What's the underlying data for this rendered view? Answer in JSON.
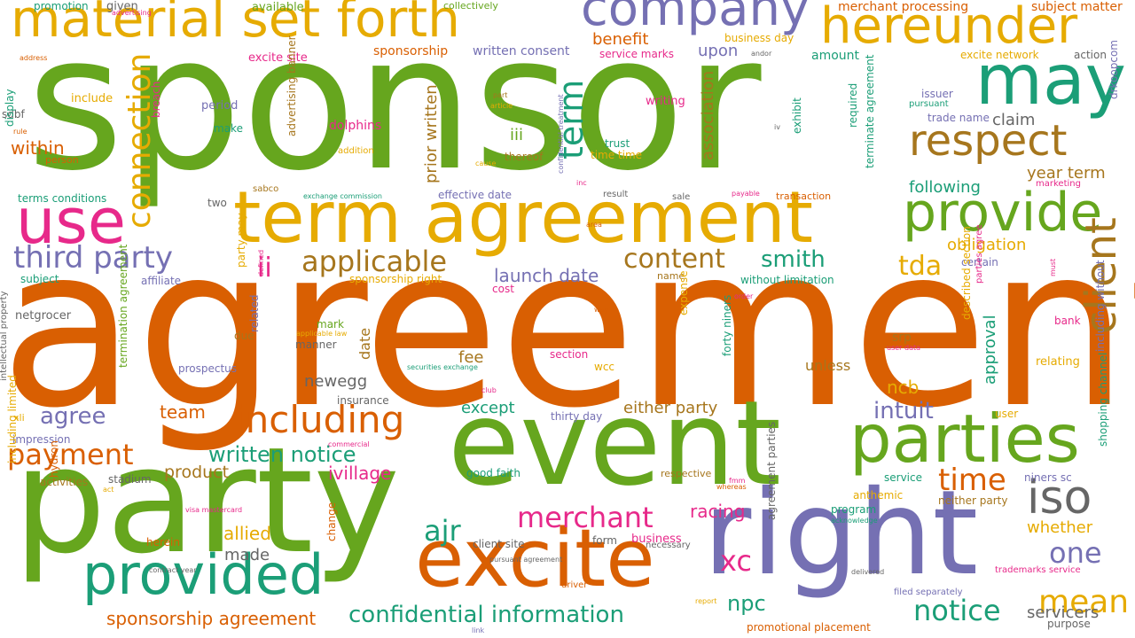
{
  "colors": {
    "green": "#66a61e",
    "orange": "#d95f02",
    "gold": "#e6ab02",
    "purple": "#7570b3",
    "teal": "#1b9e77",
    "pink": "#e7298a",
    "brown": "#a6761d",
    "gray": "#666666"
  },
  "words": [
    {
      "text": "sponsor",
      "color": "green",
      "vertical": false
    },
    {
      "text": "agreement",
      "color": "orange",
      "vertical": false
    },
    {
      "text": "party",
      "color": "green",
      "vertical": false
    },
    {
      "text": "event",
      "color": "green",
      "vertical": false
    },
    {
      "text": "right",
      "color": "purple",
      "vertical": false
    },
    {
      "text": "term agreement",
      "color": "gold",
      "vertical": false
    },
    {
      "text": "may",
      "color": "teal",
      "vertical": false
    },
    {
      "text": "excite",
      "color": "orange",
      "vertical": false
    },
    {
      "text": "parties",
      "color": "green",
      "vertical": false
    },
    {
      "text": "provide",
      "color": "green",
      "vertical": false
    },
    {
      "text": "use",
      "color": "pink",
      "vertical": false
    },
    {
      "text": "provided",
      "color": "teal",
      "vertical": false
    },
    {
      "text": "company",
      "color": "purple",
      "vertical": false
    },
    {
      "text": "material set forth",
      "color": "gold",
      "vertical": false
    },
    {
      "text": "hereunder",
      "color": "gold",
      "vertical": false
    },
    {
      "text": "respect",
      "color": "brown",
      "vertical": false
    },
    {
      "text": "client",
      "color": "brown",
      "vertical": true
    },
    {
      "text": "iso",
      "color": "gray",
      "vertical": false
    },
    {
      "text": "including",
      "color": "orange",
      "vertical": false
    },
    {
      "text": "term",
      "color": "teal",
      "vertical": true
    },
    {
      "text": "connection",
      "color": "gold",
      "vertical": true
    },
    {
      "text": "third party",
      "color": "purple",
      "vertical": false
    },
    {
      "text": "applicable",
      "color": "brown",
      "vertical": false
    },
    {
      "text": "content",
      "color": "brown",
      "vertical": false
    },
    {
      "text": "smith",
      "color": "teal",
      "vertical": false
    },
    {
      "text": "tda",
      "color": "gold",
      "vertical": false
    },
    {
      "text": "ii",
      "color": "pink",
      "vertical": false
    },
    {
      "text": "mean",
      "color": "gold",
      "vertical": false
    },
    {
      "text": "payment",
      "color": "orange",
      "vertical": false
    },
    {
      "text": "merchant",
      "color": "pink",
      "vertical": false
    },
    {
      "text": "ajr",
      "color": "teal",
      "vertical": false
    },
    {
      "text": "xc",
      "color": "pink",
      "vertical": false
    },
    {
      "text": "npc",
      "color": "teal",
      "vertical": false
    },
    {
      "text": "notice",
      "color": "teal",
      "vertical": false
    },
    {
      "text": "time",
      "color": "orange",
      "vertical": false
    },
    {
      "text": "one",
      "color": "purple",
      "vertical": false
    },
    {
      "text": "confidential information",
      "color": "teal",
      "vertical": false
    },
    {
      "text": "written notice",
      "color": "teal",
      "vertical": false
    },
    {
      "text": "sponsorship agreement",
      "color": "orange",
      "vertical": false
    },
    {
      "text": "intuit",
      "color": "purple",
      "vertical": false
    },
    {
      "text": "agree",
      "color": "purple",
      "vertical": false
    },
    {
      "text": "product",
      "color": "brown",
      "vertical": false
    },
    {
      "text": "ivillage",
      "color": "pink",
      "vertical": false
    },
    {
      "text": "racing",
      "color": "pink",
      "vertical": false
    },
    {
      "text": "allied",
      "color": "gold",
      "vertical": false
    },
    {
      "text": "made",
      "color": "gray",
      "vertical": false
    },
    {
      "text": "launch date",
      "color": "purple",
      "vertical": false
    },
    {
      "text": "benefit",
      "color": "orange",
      "vertical": false
    },
    {
      "text": "upon",
      "color": "purple",
      "vertical": false
    },
    {
      "text": "prior written",
      "color": "brown",
      "vertical": true
    },
    {
      "text": "association",
      "color": "brown",
      "vertical": true
    },
    {
      "text": "following",
      "color": "teal",
      "vertical": false
    },
    {
      "text": "year term",
      "color": "brown",
      "vertical": false
    },
    {
      "text": "obligation",
      "color": "gold",
      "vertical": false
    },
    {
      "text": "either party",
      "color": "brown",
      "vertical": false
    },
    {
      "text": "except",
      "color": "teal",
      "vertical": false
    },
    {
      "text": "team",
      "color": "orange",
      "vertical": false
    },
    {
      "text": "newegg",
      "color": "gray",
      "vertical": false
    },
    {
      "text": "ncb",
      "color": "gold",
      "vertical": false
    },
    {
      "text": "approval",
      "color": "teal",
      "vertical": true
    },
    {
      "text": "within",
      "color": "orange",
      "vertical": false
    },
    {
      "text": "iii",
      "color": "green",
      "vertical": false
    },
    {
      "text": "servicers",
      "color": "gray",
      "vertical": false
    },
    {
      "text": "whether",
      "color": "gold",
      "vertical": false
    },
    {
      "text": "claim",
      "color": "gray",
      "vertical": false
    },
    {
      "text": "fee",
      "color": "brown",
      "vertical": false
    },
    {
      "text": "unless",
      "color": "brown",
      "vertical": false
    },
    {
      "text": "date",
      "color": "brown",
      "vertical": true
    },
    {
      "text": "merchant processing",
      "color": "orange",
      "vertical": false
    },
    {
      "text": "subject matter",
      "color": "orange",
      "vertical": false
    },
    {
      "text": "excite network",
      "color": "gold",
      "vertical": false
    },
    {
      "text": "action",
      "color": "gray",
      "vertical": false
    },
    {
      "text": "issuer",
      "color": "purple",
      "vertical": false
    },
    {
      "text": "pursuant",
      "color": "teal",
      "vertical": false
    },
    {
      "text": "trade name",
      "color": "purple",
      "vertical": false
    },
    {
      "text": "drkoopcom",
      "color": "purple",
      "vertical": true
    },
    {
      "text": "terminate agreement",
      "color": "teal",
      "vertical": true
    },
    {
      "text": "required",
      "color": "teal",
      "vertical": true
    },
    {
      "text": "exhibit",
      "color": "teal",
      "vertical": true
    },
    {
      "text": "amount",
      "color": "teal",
      "vertical": false
    },
    {
      "text": "andor",
      "color": "gray",
      "vertical": false
    },
    {
      "text": "business day",
      "color": "gold",
      "vertical": false
    },
    {
      "text": "writing",
      "color": "pink",
      "vertical": false
    },
    {
      "text": "trust",
      "color": "teal",
      "vertical": false
    },
    {
      "text": "time time",
      "color": "gold",
      "vertical": false
    },
    {
      "text": "service marks",
      "color": "pink",
      "vertical": false
    },
    {
      "text": "written consent",
      "color": "purple",
      "vertical": false
    },
    {
      "text": "sponsorship",
      "color": "orange",
      "vertical": false
    },
    {
      "text": "excite site",
      "color": "pink",
      "vertical": false
    },
    {
      "text": "available",
      "color": "green",
      "vertical": false
    },
    {
      "text": "collectively",
      "color": "green",
      "vertical": false
    },
    {
      "text": "promotion",
      "color": "teal",
      "vertical": false
    },
    {
      "text": "given",
      "color": "gray",
      "vertical": false
    },
    {
      "text": "advertising",
      "color": "pink",
      "vertical": false
    },
    {
      "text": "address",
      "color": "orange",
      "vertical": false
    },
    {
      "text": "include",
      "color": "gold",
      "vertical": false
    },
    {
      "text": "period",
      "color": "purple",
      "vertical": false
    },
    {
      "text": "make",
      "color": "teal",
      "vertical": false
    },
    {
      "text": "sdbf",
      "color": "gray",
      "vertical": false
    },
    {
      "text": "rule",
      "color": "orange",
      "vertical": false
    },
    {
      "text": "person",
      "color": "orange",
      "vertical": false
    },
    {
      "text": "dolphins",
      "color": "pink",
      "vertical": false
    },
    {
      "text": "addition",
      "color": "gold",
      "vertical": false
    },
    {
      "text": "part",
      "color": "brown",
      "vertical": false
    },
    {
      "text": "article",
      "color": "gold",
      "vertical": false
    },
    {
      "text": "thereof",
      "color": "brown",
      "vertical": false
    },
    {
      "text": "cause",
      "color": "gold",
      "vertical": false
    },
    {
      "text": "advertising banner",
      "color": "brown",
      "vertical": true
    },
    {
      "text": "display",
      "color": "teal",
      "vertical": true
    },
    {
      "text": "terms conditions",
      "color": "teal",
      "vertical": false
    },
    {
      "text": "breach",
      "color": "pink",
      "vertical": true
    },
    {
      "text": "sabco",
      "color": "brown",
      "vertical": false
    },
    {
      "text": "exchange commission",
      "color": "teal",
      "vertical": false
    },
    {
      "text": "two",
      "color": "gray",
      "vertical": false
    },
    {
      "text": "effective date",
      "color": "purple",
      "vertical": false
    },
    {
      "text": "inc",
      "color": "pink",
      "vertical": false
    },
    {
      "text": "result",
      "color": "gray",
      "vertical": false
    },
    {
      "text": "confidential treatment",
      "color": "purple",
      "vertical": true
    },
    {
      "text": "sale",
      "color": "gray",
      "vertical": false
    },
    {
      "text": "payable",
      "color": "pink",
      "vertical": false
    },
    {
      "text": "transaction",
      "color": "orange",
      "vertical": false
    },
    {
      "text": "marketing",
      "color": "pink",
      "vertical": false
    },
    {
      "text": "area",
      "color": "orange",
      "vertical": false
    },
    {
      "text": "iv",
      "color": "gray",
      "vertical": false
    },
    {
      "text": "subject",
      "color": "teal",
      "vertical": false
    },
    {
      "text": "affiliate",
      "color": "purple",
      "vertical": false
    },
    {
      "text": "sponsorship right",
      "color": "gold",
      "vertical": false
    },
    {
      "text": "cost",
      "color": "pink",
      "vertical": false
    },
    {
      "text": "name",
      "color": "brown",
      "vertical": false
    },
    {
      "text": "without limitation",
      "color": "teal",
      "vertical": false
    },
    {
      "text": "certain",
      "color": "purple",
      "vertical": false
    },
    {
      "text": "intellectual property",
      "color": "gray",
      "vertical": true
    },
    {
      "text": "netgrocer",
      "color": "gray",
      "vertical": false
    },
    {
      "text": "termination agreement",
      "color": "green",
      "vertical": true
    },
    {
      "text": "party may",
      "color": "gold",
      "vertical": true
    },
    {
      "text": "order",
      "color": "pink",
      "vertical": false
    },
    {
      "text": "way",
      "color": "orange",
      "vertical": false
    },
    {
      "text": "described section",
      "color": "gold",
      "vertical": true
    },
    {
      "text": "parties agree",
      "color": "pink",
      "vertical": true
    },
    {
      "text": "including without",
      "color": "purple",
      "vertical": true
    },
    {
      "text": "bank",
      "color": "pink",
      "vertical": false
    },
    {
      "text": "must",
      "color": "pink",
      "vertical": true
    },
    {
      "text": "srp",
      "color": "brown",
      "vertical": false
    },
    {
      "text": "user data",
      "color": "pink",
      "vertical": false
    },
    {
      "text": "relating",
      "color": "gold",
      "vertical": false
    },
    {
      "text": "mark",
      "color": "green",
      "vertical": false
    },
    {
      "text": "applicable law",
      "color": "gold",
      "vertical": false
    },
    {
      "text": "due",
      "color": "brown",
      "vertical": false
    },
    {
      "text": "manner",
      "color": "gray",
      "vertical": false
    },
    {
      "text": "expense",
      "color": "gold",
      "vertical": true
    },
    {
      "text": "forty niners",
      "color": "teal",
      "vertical": true
    },
    {
      "text": "section",
      "color": "pink",
      "vertical": false
    },
    {
      "text": "prospectus",
      "color": "purple",
      "vertical": false
    },
    {
      "text": "related",
      "color": "purple",
      "vertical": true
    },
    {
      "text": "defined",
      "color": "pink",
      "vertical": true
    },
    {
      "text": "securities exchange",
      "color": "teal",
      "vertical": false
    },
    {
      "text": "wcc",
      "color": "gold",
      "vertical": false
    },
    {
      "text": "club",
      "color": "pink",
      "vertical": false
    },
    {
      "text": "insurance",
      "color": "gray",
      "vertical": false
    },
    {
      "text": "thirty day",
      "color": "purple",
      "vertical": false
    },
    {
      "text": "user",
      "color": "gold",
      "vertical": false
    },
    {
      "text": "xli",
      "color": "gold",
      "vertical": false
    },
    {
      "text": "impression",
      "color": "purple",
      "vertical": false
    },
    {
      "text": "commercial",
      "color": "pink",
      "vertical": false
    },
    {
      "text": "stadium",
      "color": "gray",
      "vertical": false
    },
    {
      "text": "activities",
      "color": "brown",
      "vertical": false
    },
    {
      "text": "act",
      "color": "gold",
      "vertical": false
    },
    {
      "text": "visa mastercard",
      "color": "pink",
      "vertical": false
    },
    {
      "text": "good faith",
      "color": "teal",
      "vertical": false
    },
    {
      "text": "respective",
      "color": "brown",
      "vertical": false
    },
    {
      "text": "fmm",
      "color": "pink",
      "vertical": false
    },
    {
      "text": "whereas",
      "color": "orange",
      "vertical": false
    },
    {
      "text": "agreement parties",
      "color": "gray",
      "vertical": true
    },
    {
      "text": "service",
      "color": "teal",
      "vertical": false
    },
    {
      "text": "niners sc",
      "color": "purple",
      "vertical": false
    },
    {
      "text": "neither party",
      "color": "brown",
      "vertical": false
    },
    {
      "text": "logans",
      "color": "purple",
      "vertical": false
    },
    {
      "text": "anthemic",
      "color": "gold",
      "vertical": false
    },
    {
      "text": "program",
      "color": "teal",
      "vertical": false
    },
    {
      "text": "acknowledge",
      "color": "teal",
      "vertical": false
    },
    {
      "text": "shopping channel",
      "color": "teal",
      "vertical": true
    },
    {
      "text": "trademarks service",
      "color": "pink",
      "vertical": false
    },
    {
      "text": "including limited",
      "color": "gold",
      "vertical": true
    },
    {
      "text": "herein",
      "color": "orange",
      "vertical": false
    },
    {
      "text": "change",
      "color": "orange",
      "vertical": true
    },
    {
      "text": "hydron",
      "color": "orange",
      "vertical": true
    },
    {
      "text": "contract year",
      "color": "gray",
      "vertical": false
    },
    {
      "text": "pursuant agreement",
      "color": "gray",
      "vertical": false
    },
    {
      "text": "client site",
      "color": "gray",
      "vertical": false
    },
    {
      "text": "form",
      "color": "gray",
      "vertical": false
    },
    {
      "text": "business",
      "color": "pink",
      "vertical": false
    },
    {
      "text": "necessary",
      "color": "gray",
      "vertical": false
    },
    {
      "text": "delivered",
      "color": "gray",
      "vertical": false
    },
    {
      "text": "driver",
      "color": "orange",
      "vertical": false
    },
    {
      "text": "report",
      "color": "gold",
      "vertical": false
    },
    {
      "text": "filed separately",
      "color": "purple",
      "vertical": false
    },
    {
      "text": "link",
      "color": "purple",
      "vertical": false
    },
    {
      "text": "promotional placement",
      "color": "orange",
      "vertical": false
    },
    {
      "text": "purpose",
      "color": "gray",
      "vertical": false
    }
  ]
}
